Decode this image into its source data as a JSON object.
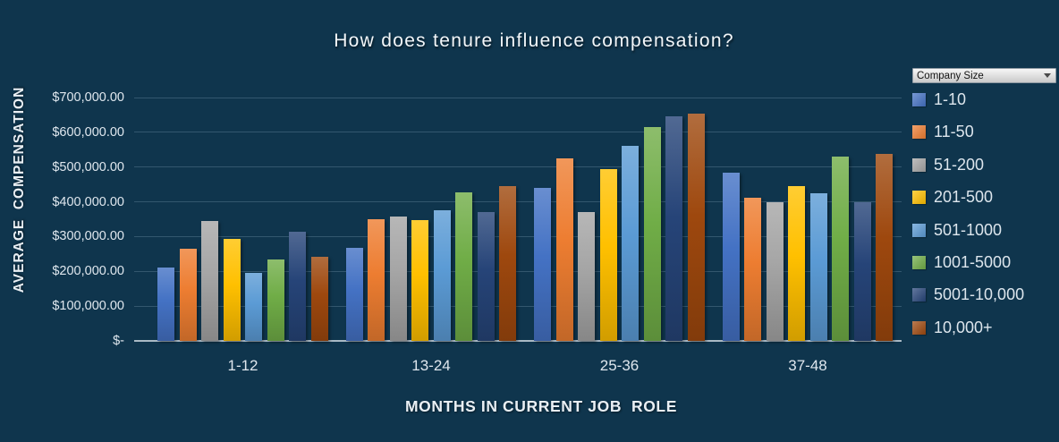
{
  "colors": {
    "background": "#0f354d",
    "gridline": "rgba(158,190,213,0.25)",
    "axis_line": "#a9b9c5",
    "text": "#dfe7ee"
  },
  "chart_data": {
    "type": "bar",
    "title": "How does tenure influence compensation?",
    "xlabel": "MONTHS IN CURRENT JOB  ROLE",
    "ylabel": "AVERAGE  COMPENSATION",
    "categories": [
      "1-12",
      "13-24",
      "25-36",
      "37-48"
    ],
    "series": [
      {
        "name": "1-10",
        "color": "#4472C4",
        "values": [
          210000,
          268000,
          441000,
          485000
        ]
      },
      {
        "name": "11-50",
        "color": "#ED7D31",
        "values": [
          264000,
          350000,
          526000,
          413000
        ]
      },
      {
        "name": "51-200",
        "color": "#A5A5A5",
        "values": [
          345000,
          358000,
          371000,
          400000
        ]
      },
      {
        "name": "201-500",
        "color": "#FFC000",
        "values": [
          293000,
          347000,
          494000,
          445000
        ]
      },
      {
        "name": "501-1000",
        "color": "#5B9BD5",
        "values": [
          197000,
          375000,
          562000,
          425000
        ]
      },
      {
        "name": "1001-5000",
        "color": "#70AD47",
        "values": [
          234000,
          427000,
          616000,
          530000
        ]
      },
      {
        "name": "5001-10,000",
        "color": "#264478",
        "values": [
          315000,
          370000,
          646000,
          400000
        ]
      },
      {
        "name": "10,000+",
        "color": "#9E480E",
        "values": [
          242000,
          445000,
          655000,
          538000
        ]
      }
    ],
    "ylim": [
      0,
      700000
    ],
    "ytick_step": 100000,
    "ytick_labels": [
      "$-",
      "$100,000.00",
      "$200,000.00",
      "$300,000.00",
      "$400,000.00",
      "$500,000.00",
      "$600,000.00",
      "$700,000.00"
    ],
    "grid": true,
    "legend_position": "right"
  },
  "legend": {
    "dropdown_label": "Company Size"
  }
}
